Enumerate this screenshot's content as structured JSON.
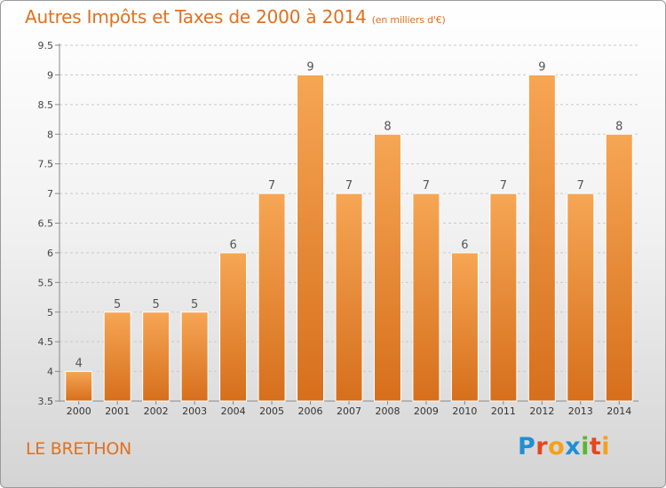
{
  "header": {
    "title": "Autres Impôts et Taxes de 2000 à 2014",
    "subtitle": "(en milliers d'€)"
  },
  "footer": {
    "city": "LE BRETHON",
    "brand": "Proxiti"
  },
  "colors": {
    "accent": "#e0701e",
    "bar_top": "#f6a654",
    "bar_bottom": "#d66f1c",
    "brand_letters": [
      "#1f8fd6",
      "#e8451e",
      "#f3a11b",
      "#1f8fd6",
      "#5ab733",
      "#e8451e",
      "#f3a11b"
    ]
  },
  "chart_data": {
    "type": "bar",
    "categories": [
      "2000",
      "2001",
      "2002",
      "2003",
      "2004",
      "2005",
      "2006",
      "2007",
      "2008",
      "2009",
      "2010",
      "2011",
      "2012",
      "2013",
      "2014"
    ],
    "values": [
      4,
      5,
      5,
      5,
      6,
      7,
      9,
      7,
      8,
      7,
      6,
      7,
      9,
      7,
      8
    ],
    "data_labels": [
      "4",
      "5",
      "5",
      "5",
      "6",
      "7",
      "9",
      "7",
      "8",
      "7",
      "6",
      "7",
      "9",
      "7",
      "8"
    ],
    "yticks": [
      "3.5",
      "4",
      "4.5",
      "5",
      "5.5",
      "6",
      "6.5",
      "7",
      "7.5",
      "8",
      "8.5",
      "9",
      "9.5"
    ],
    "ylim": [
      3.5,
      9.5
    ],
    "grid": true,
    "xlabel": "",
    "ylabel": ""
  }
}
